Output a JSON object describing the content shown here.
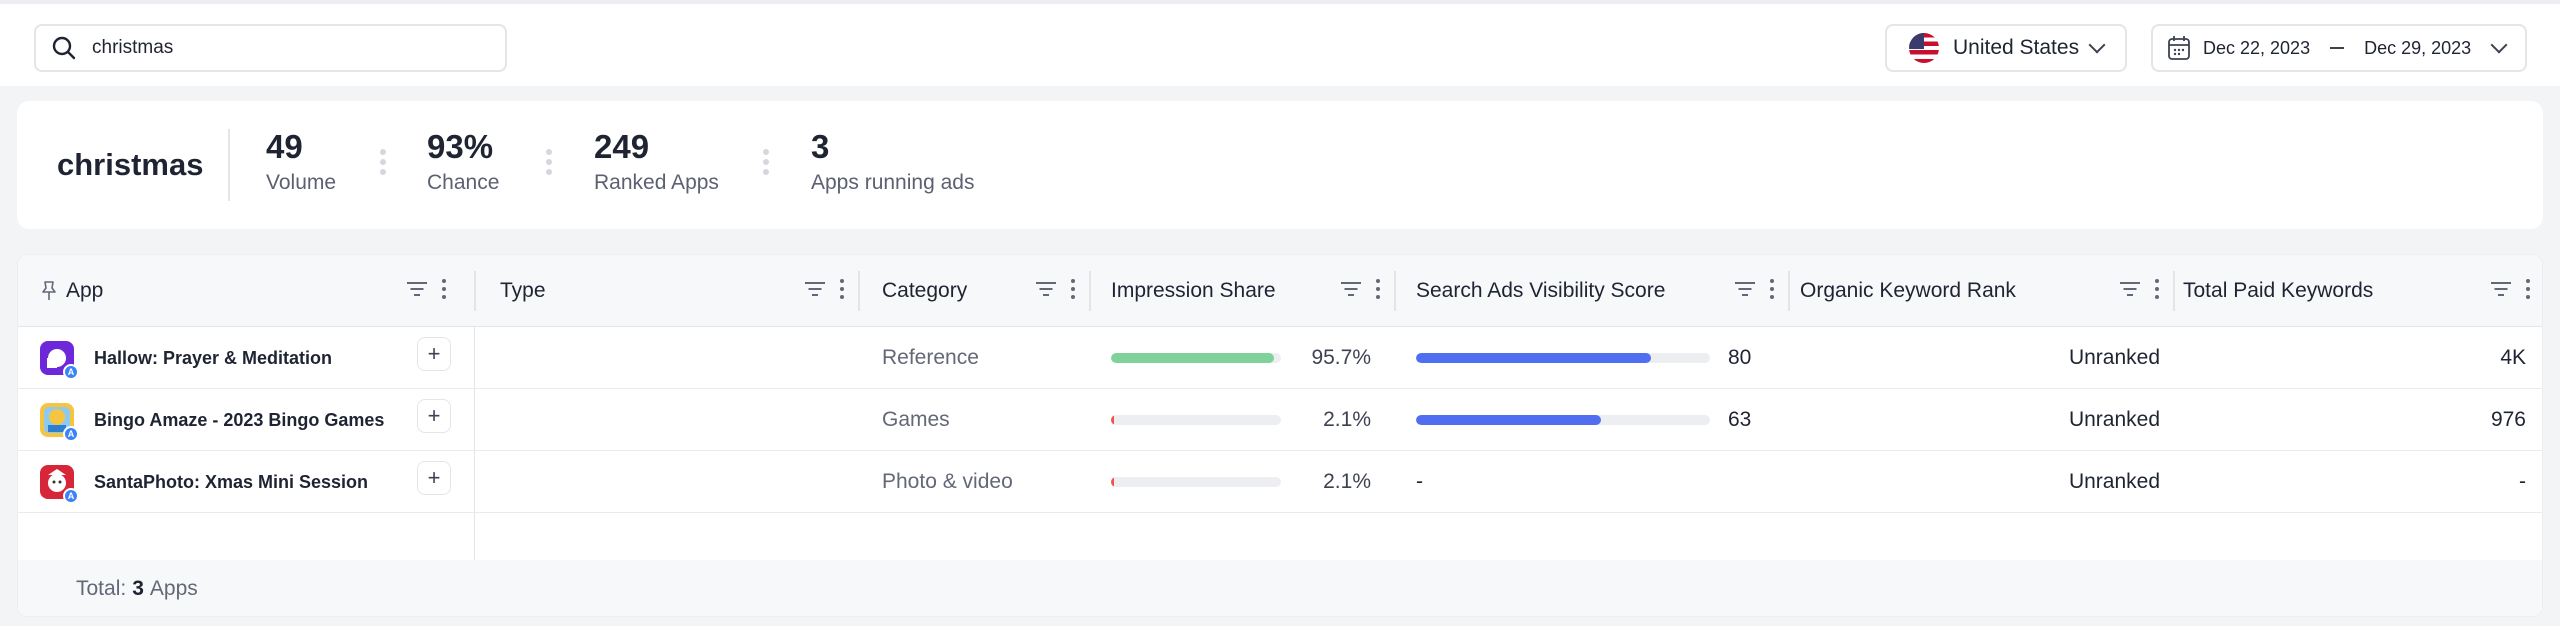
{
  "search": {
    "value": "christmas"
  },
  "country": {
    "label": "United States"
  },
  "dates": {
    "start": "Dec 22, 2023",
    "end": "Dec 29, 2023"
  },
  "summary": {
    "keyword": "christmas",
    "stats": [
      {
        "value": "49",
        "label": "Volume"
      },
      {
        "value": "93%",
        "label": "Chance"
      },
      {
        "value": "249",
        "label": "Ranked Apps"
      },
      {
        "value": "3",
        "label": "Apps running ads"
      }
    ]
  },
  "table": {
    "columns": [
      "App",
      "Type",
      "Category",
      "Impression Share",
      "Search Ads Visibility Score",
      "Organic Keyword Rank",
      "Total Paid Keywords"
    ],
    "rows": [
      {
        "name": "Hallow: Prayer & Meditation",
        "category": "Reference",
        "impression": "95.7%",
        "impression_value": 95.7,
        "visibility": "80",
        "visibility_value": 80,
        "rank": "Unranked",
        "paid": "4K"
      },
      {
        "name": "Bingo Amaze - 2023 Bingo Games",
        "category": "Games",
        "impression": "2.1%",
        "impression_value": 2.1,
        "visibility": "63",
        "visibility_value": 63,
        "rank": "Unranked",
        "paid": "976"
      },
      {
        "name": "SantaPhoto: Xmas Mini Session",
        "category": "Photo & video",
        "impression": "2.1%",
        "impression_value": 2.1,
        "visibility": "-",
        "visibility_value": null,
        "rank": "Unranked",
        "paid": "-"
      }
    ],
    "footer": {
      "prefix": "Total:",
      "count": "3",
      "suffix": "Apps"
    }
  },
  "colors": {
    "impression_high": "#7fd39a",
    "impression_low": "#ef5350",
    "visibility": "#4f6ef0",
    "app_icon_1": "#6d28d9",
    "app_icon_2": "#f5c542",
    "app_icon_3": "#d72638"
  }
}
